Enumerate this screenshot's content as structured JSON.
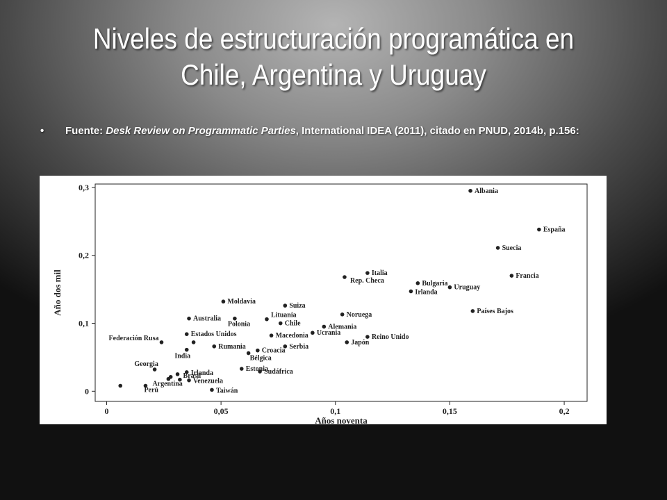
{
  "title": "Niveles de estructuración programática en Chile, Argentina y Uruguay",
  "source": {
    "bullet": "•",
    "prefix": "Fuente: ",
    "italic": "Desk Review on Programmatic Parties",
    "suffix": ", International IDEA (2011), citado en PNUD, 2014b, p.156:"
  },
  "colors": {
    "text": "#ffffff",
    "chart_bg": "#ffffff",
    "ink": "#222222"
  },
  "chart_data": {
    "type": "scatter",
    "title": "",
    "xlabel": "Años noventa",
    "ylabel": "Año dos mil",
    "xlim": [
      -0.005,
      0.21
    ],
    "ylim": [
      -0.015,
      0.305
    ],
    "xticks": [
      0,
      0.05,
      0.1,
      0.15,
      0.2
    ],
    "xtick_labels": [
      "0",
      "0,05",
      "0,1",
      "0,15",
      "0,2"
    ],
    "yticks": [
      0,
      0.1,
      0.2,
      0.3
    ],
    "ytick_labels": [
      "0",
      "0,1",
      "0,2",
      "0,3"
    ],
    "grid": false,
    "points": [
      {
        "label": "Albania",
        "x": 0.159,
        "y": 0.295
      },
      {
        "label": "España",
        "x": 0.189,
        "y": 0.238
      },
      {
        "label": "Suecia",
        "x": 0.171,
        "y": 0.211
      },
      {
        "label": "Francia",
        "x": 0.177,
        "y": 0.17
      },
      {
        "label": "Italia",
        "x": 0.114,
        "y": 0.174
      },
      {
        "label": "Rep. Checa",
        "x": 0.104,
        "y": 0.168
      },
      {
        "label": "Bulgaria",
        "x": 0.136,
        "y": 0.159
      },
      {
        "label": "Uruguay",
        "x": 0.15,
        "y": 0.153
      },
      {
        "label": "Irlanda",
        "x": 0.133,
        "y": 0.147
      },
      {
        "label": "Países Bajos",
        "x": 0.16,
        "y": 0.118
      },
      {
        "label": "Moldavia",
        "x": 0.051,
        "y": 0.132
      },
      {
        "label": "Suiza",
        "x": 0.078,
        "y": 0.126
      },
      {
        "label": "Noruega",
        "x": 0.103,
        "y": 0.113
      },
      {
        "label": "Australia",
        "x": 0.036,
        "y": 0.107
      },
      {
        "label": "Polonia",
        "x": 0.056,
        "y": 0.107
      },
      {
        "label": "Lituania",
        "x": 0.07,
        "y": 0.106
      },
      {
        "label": "Chile",
        "x": 0.076,
        "y": 0.1
      },
      {
        "label": "Alemania",
        "x": 0.095,
        "y": 0.095
      },
      {
        "label": "Ucrania",
        "x": 0.09,
        "y": 0.086
      },
      {
        "label": "Macedonia",
        "x": 0.072,
        "y": 0.082
      },
      {
        "label": "Reino Unido",
        "x": 0.114,
        "y": 0.08
      },
      {
        "label": "Japón",
        "x": 0.105,
        "y": 0.072
      },
      {
        "label": "Estados Unidos",
        "x": 0.035,
        "y": 0.084
      },
      {
        "label": "Federación Rusa",
        "x": 0.024,
        "y": 0.072
      },
      {
        "label": "Federación Rusa (2)",
        "x": 0.038,
        "y": 0.072,
        "hide_label": true
      },
      {
        "label": "Rumania",
        "x": 0.047,
        "y": 0.066
      },
      {
        "label": "Serbia",
        "x": 0.078,
        "y": 0.066
      },
      {
        "label": "Croacia",
        "x": 0.066,
        "y": 0.06
      },
      {
        "label": "India",
        "x": 0.035,
        "y": 0.061
      },
      {
        "label": "Bélgica",
        "x": 0.062,
        "y": 0.056
      },
      {
        "label": "Georgia",
        "x": 0.021,
        "y": 0.032
      },
      {
        "label": "Estonia",
        "x": 0.059,
        "y": 0.033
      },
      {
        "label": "Irlanda",
        "x": 0.035,
        "y": 0.028
      },
      {
        "label": "Sudáfrica",
        "x": 0.067,
        "y": 0.029
      },
      {
        "label": "Brasil",
        "x": 0.031,
        "y": 0.025
      },
      {
        "label": "Brasil (2)",
        "x": 0.028,
        "y": 0.021,
        "hide_label": true
      },
      {
        "label": "Brasil (3)",
        "x": 0.027,
        "y": 0.018,
        "hide_label": true
      },
      {
        "label": "Venezuela",
        "x": 0.036,
        "y": 0.016
      },
      {
        "label": "Venezuela (2)",
        "x": 0.032,
        "y": 0.017,
        "hide_label": true
      },
      {
        "label": "Argentina",
        "x": 0.017,
        "y": 0.008
      },
      {
        "label": "Argentina (2)",
        "x": 0.006,
        "y": 0.008,
        "hide_label": true
      },
      {
        "label": "Perú",
        "x": 0.017,
        "y": 0.002,
        "hide_dot": true
      },
      {
        "label": "Taiwán",
        "x": 0.046,
        "y": 0.002
      }
    ]
  }
}
